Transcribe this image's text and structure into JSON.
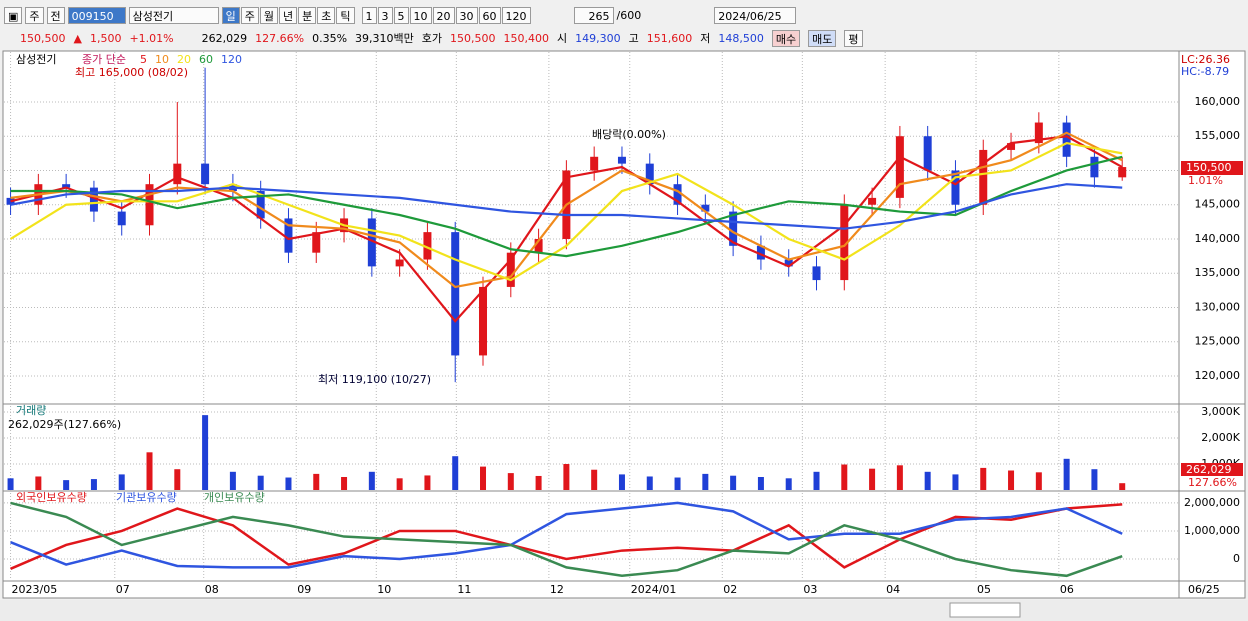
{
  "toolbar": {
    "market": "주",
    "prev": "전",
    "code": "009150",
    "name": "삼성전기",
    "periods": [
      "일",
      "주",
      "월",
      "년",
      "분",
      "초",
      "틱"
    ],
    "minutes": [
      "1",
      "3",
      "5",
      "10",
      "20",
      "30",
      "60",
      "120"
    ],
    "count": "265",
    "total": "/600",
    "date": "2024/06/25"
  },
  "quote": {
    "price": "150,500",
    "arrow": "▲",
    "change": "1,500",
    "rate": "+1.01%",
    "volume": "262,029",
    "volume_ratio": "127.66%",
    "turnover": "0.35%",
    "amount": "39,310백만",
    "ask_label": "호가",
    "ask": "150,500",
    "bid": "150,400",
    "open_label": "시",
    "open": "149,300",
    "high_label": "고",
    "high": "151,600",
    "low_label": "저",
    "low": "148,500",
    "buttons": [
      "매수",
      "매도",
      "평"
    ]
  },
  "chart_data": {
    "type": "candlestick",
    "stock": "삼성전기",
    "ma_label": "종가 단순",
    "xlim": [
      -0.2,
      41
    ],
    "xticks": [
      {
        "value": 0,
        "label": "2023/05"
      },
      {
        "value": 3.75,
        "label": "07"
      },
      {
        "value": 6.95,
        "label": "08"
      },
      {
        "value": 10.28,
        "label": "09"
      },
      {
        "value": 13.16,
        "label": "10"
      },
      {
        "value": 16.04,
        "label": "11"
      },
      {
        "value": 19.37,
        "label": "12"
      },
      {
        "value": 22.28,
        "label": "2024/01"
      },
      {
        "value": 25.61,
        "label": "02"
      },
      {
        "value": 28.49,
        "label": "03"
      },
      {
        "value": 31.47,
        "label": "04"
      },
      {
        "value": 34.74,
        "label": "05"
      },
      {
        "value": 37.72,
        "label": "06"
      }
    ],
    "last_date": "06/25",
    "ylim": [
      116200,
      166860
    ],
    "yticks": [
      {
        "value": 160000,
        "label": "160,000"
      },
      {
        "value": 155000,
        "label": "155,000"
      },
      {
        "value": 150000,
        "label": "150,000"
      },
      {
        "value": 145000,
        "label": "145,000"
      },
      {
        "value": 140000,
        "label": "140,000"
      },
      {
        "value": 135000,
        "label": "135,000"
      },
      {
        "value": 130000,
        "label": "130,000"
      },
      {
        "value": 125000,
        "label": "125,000"
      },
      {
        "value": 120000,
        "label": "120,000"
      }
    ],
    "up_color": "#e0161b",
    "down_color": "#1f3fd6",
    "open": [
      146000,
      145000,
      148000,
      147500,
      144000,
      142000,
      148000,
      151000,
      148000,
      147000,
      143000,
      138000,
      141000,
      143000,
      136000,
      137000,
      141000,
      123000,
      133000,
      138000,
      140000,
      150000,
      152000,
      151000,
      148000,
      145000,
      144000,
      139000,
      137000,
      136000,
      134000,
      145000,
      146000,
      155000,
      150000,
      145000,
      153000,
      154000,
      157000,
      152000,
      149000
    ],
    "high": [
      147500,
      149500,
      149500,
      148500,
      145500,
      149500,
      160000,
      165000,
      149500,
      148500,
      144500,
      142500,
      144500,
      144500,
      138500,
      142500,
      142500,
      134500,
      139500,
      141500,
      151500,
      153500,
      153500,
      152500,
      149500,
      146500,
      145500,
      140500,
      138500,
      137500,
      146500,
      147500,
      156500,
      156500,
      151500,
      154500,
      155500,
      158500,
      158000,
      153500,
      152000
    ],
    "low": [
      143500,
      143500,
      146000,
      142500,
      140500,
      140500,
      146500,
      146500,
      145500,
      141500,
      136500,
      136500,
      139500,
      134500,
      134500,
      135500,
      119100,
      121500,
      131500,
      136500,
      138500,
      148500,
      149500,
      146500,
      143500,
      142500,
      137500,
      135500,
      134500,
      132500,
      132500,
      143500,
      144500,
      148500,
      143500,
      143500,
      151500,
      152500,
      150500,
      147500,
      148500
    ],
    "close": [
      145000,
      148000,
      147500,
      144000,
      142000,
      148000,
      151000,
      148000,
      147000,
      143000,
      138000,
      141000,
      143000,
      136000,
      137000,
      141000,
      123000,
      133000,
      138000,
      140000,
      150000,
      152000,
      151000,
      148000,
      145000,
      144000,
      139000,
      137000,
      136000,
      134000,
      145000,
      146000,
      155000,
      150000,
      145000,
      153000,
      154000,
      157000,
      152000,
      149000,
      150500
    ],
    "sample_x": [
      0,
      2,
      4,
      6,
      8,
      10,
      12,
      14,
      16,
      18,
      20,
      22,
      24,
      26,
      28,
      30,
      32,
      34,
      36,
      38,
      40
    ],
    "series": [
      {
        "name": "5",
        "color": "#e0161b",
        "values": [
          145500,
          147500,
          144500,
          149000,
          146000,
          140000,
          141500,
          138000,
          128000,
          137000,
          149000,
          150500,
          145500,
          139500,
          136000,
          142000,
          152000,
          148000,
          154000,
          155000,
          150500
        ]
      },
      {
        "name": "10",
        "color": "#f08a1c",
        "values": [
          146000,
          147000,
          145500,
          147500,
          147000,
          142000,
          141500,
          139500,
          133000,
          134500,
          145000,
          150000,
          147000,
          141000,
          137000,
          139000,
          148000,
          149500,
          151500,
          155500,
          151500
        ]
      },
      {
        "name": "20",
        "color": "#f2e31b",
        "values": [
          140000,
          145000,
          145500,
          145500,
          148000,
          145000,
          142000,
          140500,
          137000,
          134000,
          139000,
          147000,
          149500,
          145000,
          140000,
          137000,
          142000,
          149000,
          150000,
          154000,
          152500
        ]
      },
      {
        "name": "60",
        "color": "#1e9a3a",
        "values": [
          147000,
          147000,
          146500,
          144500,
          146000,
          146500,
          145000,
          143500,
          141500,
          138500,
          137500,
          139000,
          141000,
          143500,
          145500,
          145000,
          144000,
          143500,
          147000,
          150000,
          152000
        ]
      },
      {
        "name": "120",
        "color": "#2f55e0",
        "values": [
          145000,
          146500,
          147000,
          147000,
          147500,
          147000,
          146500,
          146000,
          145000,
          144000,
          143500,
          143500,
          143000,
          142500,
          142000,
          141500,
          142500,
          144000,
          146500,
          148000,
          147500
        ]
      }
    ],
    "annotations": {
      "high": "최고 165,000 (08/02)",
      "low": "최저 119,100 (10/27)",
      "dividend": "배당락(0.00%)",
      "lc": "LC:26.36",
      "hc": "HC:-8.79",
      "last_price": "150,500",
      "last_rate": "1.01%"
    },
    "volume": {
      "title": "거래량",
      "summary": "262,029주(127.66%)",
      "ylim": [
        0,
        3270000
      ],
      "yticks": [
        {
          "value": 3000000,
          "label": "3,000K"
        },
        {
          "value": 2000000,
          "label": "2,000K"
        },
        {
          "value": 1000000,
          "label": "1,000K"
        }
      ],
      "values": [
        450000,
        520000,
        380000,
        420000,
        600000,
        1450000,
        800000,
        2880000,
        700000,
        550000,
        480000,
        620000,
        500000,
        700000,
        450000,
        560000,
        1300000,
        900000,
        650000,
        540000,
        1000000,
        780000,
        600000,
        520000,
        480000,
        620000,
        550000,
        500000,
        450000,
        700000,
        980000,
        820000,
        950000,
        700000,
        600000,
        850000,
        750000,
        680000,
        1200000,
        800000,
        262029
      ],
      "last_label": "262,029",
      "last_ratio": "127.66%"
    },
    "holdings": {
      "ylim": [
        -750000,
        2390000
      ],
      "yticks": [
        {
          "value": 2000000,
          "label": "2,000,000"
        },
        {
          "value": 1000000,
          "label": "1,000,000"
        },
        0
      ],
      "series": [
        {
          "name": "외국인보유수량",
          "color": "#e0161b",
          "values": [
            -350000,
            500000,
            1000000,
            1800000,
            1200000,
            -200000,
            200000,
            1000000,
            1000000,
            500000,
            0,
            300000,
            400000,
            300000,
            1200000,
            -300000,
            700000,
            1500000,
            1400000,
            1800000,
            1950000
          ]
        },
        {
          "name": "기관보유수량",
          "color": "#2f55e0",
          "values": [
            600000,
            -200000,
            300000,
            -250000,
            -300000,
            -300000,
            100000,
            0,
            200000,
            500000,
            1600000,
            1800000,
            2000000,
            1700000,
            700000,
            900000,
            900000,
            1400000,
            1500000,
            1800000,
            900000
          ]
        },
        {
          "name": "개인보유수량",
          "color": "#3a8a52",
          "values": [
            2000000,
            1500000,
            500000,
            1000000,
            1500000,
            1200000,
            800000,
            700000,
            600000,
            500000,
            -300000,
            -600000,
            -400000,
            300000,
            200000,
            1200000,
            700000,
            0,
            -400000,
            -600000,
            100000
          ]
        }
      ]
    }
  }
}
